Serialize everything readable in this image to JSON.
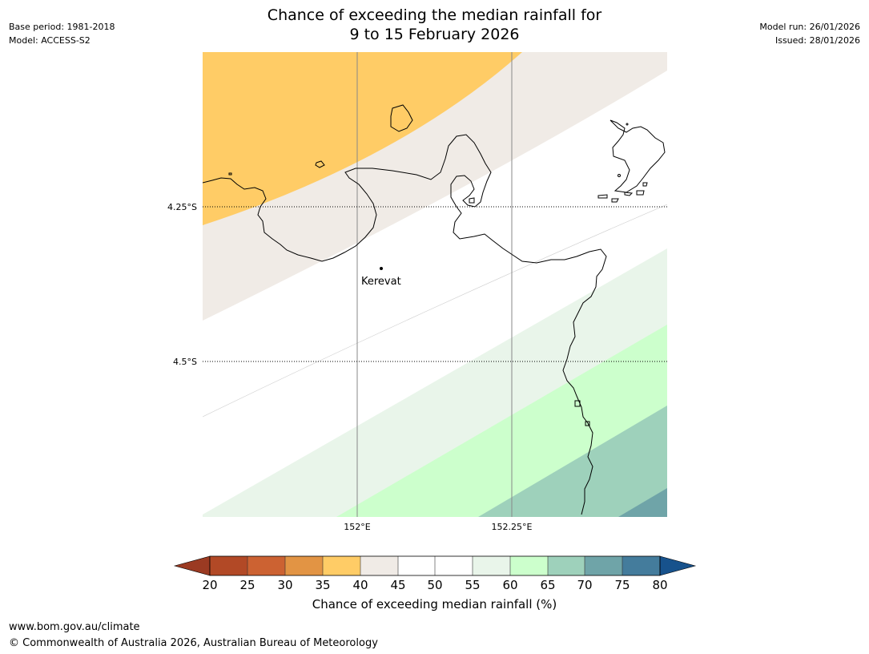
{
  "header": {
    "base_period": "Base period: 1981-2018",
    "model": "Model: ACCESS-S2",
    "model_run": "Model run: 26/01/2026",
    "issued": "Issued: 28/01/2026",
    "title_line1": "Chance of exceeding the median rainfall for",
    "title_line2": "9 to 15 February 2026"
  },
  "map": {
    "lat_labels": [
      "4.25°S",
      "4.5°S"
    ],
    "lon_labels": [
      "152°E",
      "152.25°E"
    ],
    "place": "Kerevat"
  },
  "legend": {
    "ticks": [
      "20",
      "25",
      "30",
      "35",
      "40",
      "45",
      "50",
      "55",
      "60",
      "65",
      "70",
      "75",
      "80"
    ],
    "title": "Chance of exceeding median rainfall (%)",
    "colors": {
      "lt20": "#9b3a22",
      "20-25": "#b24926",
      "25-30": "#cc6232",
      "30-35": "#e29444",
      "35-40": "#ffcc66",
      "40-45": "#f0ebe6",
      "45-50": "#ffffff",
      "50-55": "#ffffff",
      "55-60": "#e9f5ea",
      "60-65": "#ccffcc",
      "65-70": "#9ed1bb",
      "70-75": "#6fa4a8",
      "75-80": "#447c9c",
      "gt80": "#17528c"
    }
  },
  "footer": {
    "url": "www.bom.gov.au/climate",
    "copyright": "© Commonwealth of Australia 2026, Australian Bureau of Meteorology"
  }
}
